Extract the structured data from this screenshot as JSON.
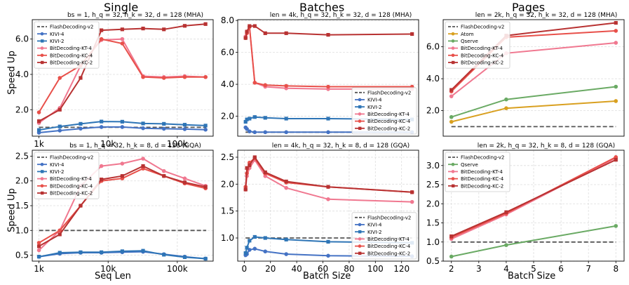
{
  "column_titles": [
    "Single",
    "Batches",
    "Pages"
  ],
  "row_ylabels": [
    "Speed Up",
    "Speed Up"
  ],
  "column_xlabels": [
    "Seq Len",
    "Batch Size",
    "Batch Size"
  ],
  "colors": {
    "FlashDecoding-v2": "#555555",
    "KIVI-4": "#4472c4",
    "KIVI-2": "#2e75b6",
    "BitDecoding-KT-4": "#f07890",
    "BitDecoding-KC-4": "#e8504a",
    "BitDecoding-KC-2": "#b83232",
    "Atom": "#d9a020",
    "Qserve": "#6aaa64"
  },
  "chart_data": [
    {
      "type": "line",
      "title": "bs = 1, h_q = 32, h_k = 32, d = 128 (MHA)",
      "xscale": "log",
      "xlim": [
        800,
        330000
      ],
      "xticks": [
        1000,
        10000,
        100000
      ],
      "xticklabels": [
        "1k",
        "10k",
        "100k"
      ],
      "ylim": [
        0.5,
        7.1
      ],
      "yticks": [
        2,
        4,
        6
      ],
      "yticklabels": [
        "2.0",
        "4.0",
        "6.0"
      ],
      "legend": "upper-left",
      "series": [
        {
          "name": "FlashDecoding-v2",
          "dashed": true,
          "x": [
            1000,
            262144
          ],
          "y": [
            1.0,
            1.0
          ]
        },
        {
          "name": "KIVI-4",
          "marker": "circle",
          "x": [
            1000,
            2000,
            4000,
            8000,
            16000,
            32000,
            64000,
            128000,
            256000
          ],
          "y": [
            0.7,
            0.82,
            0.93,
            1.02,
            1.02,
            0.95,
            0.92,
            0.9,
            0.87
          ]
        },
        {
          "name": "KIVI-2",
          "marker": "square",
          "x": [
            1000,
            2000,
            4000,
            8000,
            16000,
            32000,
            64000,
            128000,
            256000
          ],
          "y": [
            0.85,
            1.05,
            1.2,
            1.33,
            1.32,
            1.22,
            1.2,
            1.15,
            1.1
          ]
        },
        {
          "name": "BitDecoding-KT-4",
          "marker": "circle",
          "x": [
            1000,
            2000,
            4000,
            8000,
            16000,
            32000,
            64000,
            128000,
            256000
          ],
          "y": [
            1.25,
            2.1,
            4.5,
            5.95,
            6.0,
            3.9,
            3.85,
            3.9,
            3.85
          ]
        },
        {
          "name": "BitDecoding-KC-4",
          "marker": "circle",
          "x": [
            1000,
            2000,
            4000,
            8000,
            16000,
            32000,
            64000,
            128000,
            256000
          ],
          "y": [
            1.85,
            3.8,
            4.5,
            6.0,
            5.75,
            3.85,
            3.8,
            3.85,
            3.85
          ]
        },
        {
          "name": "BitDecoding-KC-2",
          "marker": "square",
          "x": [
            1000,
            2000,
            4000,
            8000,
            16000,
            32000,
            64000,
            128000,
            256000
          ],
          "y": [
            1.35,
            2.0,
            3.8,
            6.5,
            6.55,
            6.6,
            6.55,
            6.75,
            6.85
          ]
        }
      ]
    },
    {
      "type": "line",
      "title": "len = 4k, h_q = 32, h_k = 32, d = 128 (MHA)",
      "xlim": [
        -5,
        133
      ],
      "xticks": [],
      "xticklabels": [],
      "ylim": [
        0.75,
        8.05
      ],
      "yticks": [
        2,
        4,
        6,
        8
      ],
      "yticklabels": [
        "2.0",
        "4.0",
        "6.0",
        "8.0"
      ],
      "legend": "lower-right",
      "series": [
        {
          "name": "FlashDecoding-v2",
          "dashed": true,
          "x": [
            1,
            128
          ],
          "y": [
            1.0,
            1.0
          ]
        },
        {
          "name": "KIVI-4",
          "marker": "circle",
          "x": [
            1,
            2,
            4,
            8,
            16,
            32,
            64,
            128
          ],
          "y": [
            1.3,
            1.2,
            1.05,
            1.0,
            1.0,
            1.0,
            1.0,
            1.0
          ]
        },
        {
          "name": "KIVI-2",
          "marker": "square",
          "x": [
            1,
            2,
            4,
            8,
            16,
            32,
            64,
            128
          ],
          "y": [
            1.65,
            1.8,
            1.85,
            1.95,
            1.9,
            1.85,
            1.85,
            1.8
          ]
        },
        {
          "name": "BitDecoding-KT-4",
          "marker": "circle",
          "x": [
            1,
            2,
            4,
            8,
            16,
            32,
            64,
            128
          ],
          "y": [
            7.0,
            7.3,
            7.6,
            4.1,
            3.85,
            3.75,
            3.7,
            3.7
          ]
        },
        {
          "name": "BitDecoding-KC-4",
          "marker": "circle",
          "x": [
            1,
            2,
            4,
            8,
            16,
            32,
            64,
            128
          ],
          "y": [
            6.9,
            7.2,
            7.6,
            4.1,
            3.95,
            3.9,
            3.85,
            3.85
          ]
        },
        {
          "name": "BitDecoding-KC-2",
          "marker": "square",
          "x": [
            1,
            2,
            4,
            8,
            16,
            32,
            64,
            128
          ],
          "y": [
            6.9,
            7.3,
            7.65,
            7.65,
            7.2,
            7.2,
            7.1,
            7.15
          ]
        }
      ]
    },
    {
      "type": "line",
      "title": "len = 2k, h_q = 32, h_k = 32, d = 128 (MHA)",
      "xlim": [
        1.7,
        8.3
      ],
      "xticks": [],
      "xticklabels": [],
      "ylim": [
        0.4,
        7.7
      ],
      "yticks": [
        2,
        4,
        6
      ],
      "yticklabels": [
        "2.0",
        "4.0",
        "6.0"
      ],
      "legend": "upper-left",
      "series": [
        {
          "name": "FlashDecoding-v2",
          "dashed": true,
          "x": [
            2,
            8
          ],
          "y": [
            1.0,
            1.0
          ]
        },
        {
          "name": "Atom",
          "marker": "circle",
          "x": [
            2,
            4,
            8
          ],
          "y": [
            1.3,
            2.15,
            2.6
          ]
        },
        {
          "name": "Qserve",
          "marker": "circle",
          "x": [
            2,
            4,
            8
          ],
          "y": [
            1.6,
            2.7,
            3.5
          ]
        },
        {
          "name": "BitDecoding-KT-4",
          "marker": "circle",
          "x": [
            2,
            4,
            8
          ],
          "y": [
            2.9,
            5.6,
            6.25
          ]
        },
        {
          "name": "BitDecoding-KC-4",
          "marker": "circle",
          "x": [
            2,
            4,
            8
          ],
          "y": [
            3.2,
            6.6,
            7.0
          ]
        },
        {
          "name": "BitDecoding-KC-2",
          "marker": "square",
          "x": [
            2,
            4,
            8
          ],
          "y": [
            3.3,
            6.7,
            7.5
          ]
        }
      ]
    },
    {
      "type": "line",
      "title": "bs = 1, h_q = 32, h_k = 8, d = 128 (GQA)",
      "xscale": "log",
      "xlim": [
        800,
        330000
      ],
      "xticks": [
        1000,
        10000,
        100000
      ],
      "xticklabels": [
        "1k",
        "10k",
        "100k"
      ],
      "ylim": [
        0.38,
        2.62
      ],
      "yticks": [
        0.5,
        1.0,
        1.5,
        2.0,
        2.5
      ],
      "yticklabels": [
        "0.5",
        "1.0",
        "1.5",
        "2.0",
        "2.5"
      ],
      "legend": "upper-left",
      "series": [
        {
          "name": "FlashDecoding-v2",
          "dashed": true,
          "x": [
            1000,
            262144
          ],
          "y": [
            1.0,
            1.0
          ]
        },
        {
          "name": "KIVI-4",
          "marker": "circle",
          "x": [
            1000,
            2000,
            4000,
            8000,
            16000,
            32000,
            64000,
            128000,
            256000
          ],
          "y": [
            0.47,
            0.53,
            0.55,
            0.55,
            0.56,
            0.57,
            0.52,
            0.47,
            0.43
          ]
        },
        {
          "name": "KIVI-2",
          "marker": "square",
          "x": [
            1000,
            2000,
            4000,
            8000,
            16000,
            32000,
            64000,
            128000,
            256000
          ],
          "y": [
            0.47,
            0.55,
            0.56,
            0.56,
            0.58,
            0.59,
            0.51,
            0.46,
            0.43
          ]
        },
        {
          "name": "BitDecoding-KT-4",
          "marker": "circle",
          "x": [
            1000,
            2000,
            4000,
            8000,
            16000,
            32000,
            64000,
            128000,
            256000
          ],
          "y": [
            0.6,
            1.0,
            1.9,
            2.3,
            2.35,
            2.45,
            2.2,
            2.05,
            1.9
          ]
        },
        {
          "name": "BitDecoding-KC-4",
          "marker": "circle",
          "x": [
            1000,
            2000,
            4000,
            8000,
            16000,
            32000,
            64000,
            128000,
            256000
          ],
          "y": [
            0.75,
            1.0,
            1.5,
            2.0,
            2.05,
            2.25,
            2.1,
            1.95,
            1.85
          ]
        },
        {
          "name": "BitDecoding-KC-2",
          "marker": "square",
          "x": [
            1000,
            2000,
            4000,
            8000,
            16000,
            32000,
            64000,
            128000,
            256000
          ],
          "y": [
            0.68,
            0.92,
            1.5,
            2.03,
            2.1,
            2.3,
            2.1,
            1.97,
            1.88
          ]
        }
      ]
    },
    {
      "type": "line",
      "title": "len = 4k, h_q = 32, h_k = 8, d = 128 (GQA)",
      "xlim": [
        -5,
        133
      ],
      "xticks": [
        0,
        20,
        40,
        60,
        80,
        100,
        120
      ],
      "xticklabels": [
        "0",
        "20",
        "40",
        "60",
        "80",
        "100",
        "120"
      ],
      "ylim": [
        0.57,
        2.63
      ],
      "yticks": [
        1.0,
        1.5,
        2.0,
        2.5
      ],
      "yticklabels": [
        "1.0",
        "1.5",
        "2.0",
        "2.5"
      ],
      "legend": "lower-right",
      "series": [
        {
          "name": "FlashDecoding-v2",
          "dashed": true,
          "x": [
            1,
            128
          ],
          "y": [
            1.0,
            1.0
          ]
        },
        {
          "name": "KIVI-4",
          "marker": "circle",
          "x": [
            1,
            2,
            4,
            8,
            16,
            32,
            64,
            128
          ],
          "y": [
            0.68,
            0.7,
            0.78,
            0.8,
            0.75,
            0.7,
            0.67,
            0.66
          ]
        },
        {
          "name": "KIVI-2",
          "marker": "square",
          "x": [
            1,
            2,
            4,
            8,
            16,
            32,
            64,
            128
          ],
          "y": [
            0.72,
            0.82,
            0.95,
            1.02,
            1.0,
            0.97,
            0.93,
            0.91
          ]
        },
        {
          "name": "BitDecoding-KT-4",
          "marker": "circle",
          "x": [
            1,
            2,
            4,
            8,
            16,
            32,
            64,
            128
          ],
          "y": [
            1.9,
            2.15,
            2.3,
            2.45,
            2.15,
            1.93,
            1.72,
            1.67
          ]
        },
        {
          "name": "BitDecoding-KC-4",
          "marker": "circle",
          "x": [
            1,
            2,
            4,
            8,
            16,
            32,
            64,
            128
          ],
          "y": [
            1.95,
            2.2,
            2.4,
            2.48,
            2.2,
            2.03,
            1.95,
            1.85
          ]
        },
        {
          "name": "BitDecoding-KC-2",
          "marker": "square",
          "x": [
            1,
            2,
            4,
            8,
            16,
            32,
            64,
            128
          ],
          "y": [
            1.9,
            2.3,
            2.35,
            2.5,
            2.22,
            2.05,
            1.95,
            1.85
          ]
        }
      ]
    },
    {
      "type": "line",
      "title": "len = 2k, h_q = 32, h_k = 8, d = 128 (GQA)",
      "xlim": [
        1.7,
        8.3
      ],
      "xticks": [
        2,
        3,
        4,
        5,
        6,
        7,
        8
      ],
      "xticklabels": [
        "2",
        "3",
        "4",
        "5",
        "6",
        "7",
        "8"
      ],
      "ylim": [
        0.5,
        3.4
      ],
      "yticks": [
        0.5,
        1.0,
        1.5,
        2.0,
        2.5,
        3.0
      ],
      "yticklabels": [
        "0.5",
        "1.0",
        "1.5",
        "2.0",
        "2.5",
        "3.0"
      ],
      "legend": "upper-left",
      "series": [
        {
          "name": "FlashDecoding-v2",
          "dashed": true,
          "x": [
            2,
            8
          ],
          "y": [
            1.0,
            1.0
          ]
        },
        {
          "name": "Qserve",
          "marker": "circle",
          "x": [
            2,
            4,
            8
          ],
          "y": [
            0.62,
            0.92,
            1.42
          ]
        },
        {
          "name": "BitDecoding-KT-4",
          "marker": "circle",
          "x": [
            2,
            4,
            8
          ],
          "y": [
            1.08,
            1.72,
            3.2
          ]
        },
        {
          "name": "BitDecoding-KC-4",
          "marker": "circle",
          "x": [
            2,
            4,
            8
          ],
          "y": [
            1.12,
            1.75,
            3.22
          ]
        },
        {
          "name": "BitDecoding-KC-2",
          "marker": "square",
          "x": [
            2,
            4,
            8
          ],
          "y": [
            1.15,
            1.78,
            3.15
          ]
        }
      ]
    }
  ]
}
